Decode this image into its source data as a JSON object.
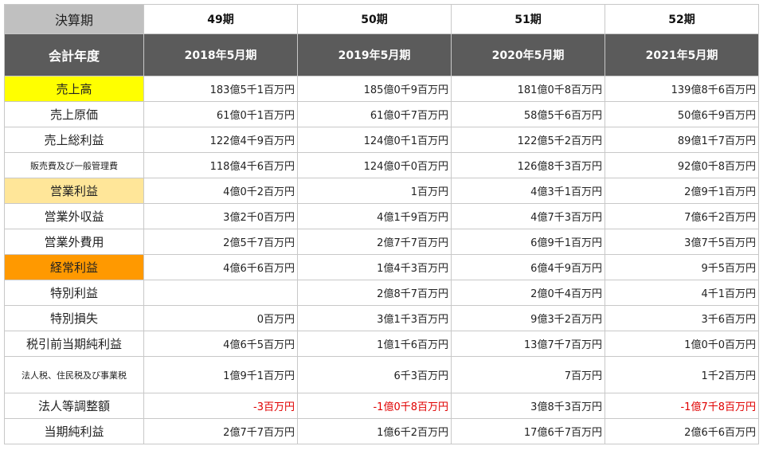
{
  "header": {
    "period_label": "決算期",
    "periods": [
      "49期",
      "50期",
      "51期",
      "52期"
    ],
    "fiscal_label": "会計年度",
    "years": [
      "2018年5月期",
      "2019年5月期",
      "2020年5月期",
      "2021年5月期"
    ]
  },
  "colors": {
    "highlight_yellow": "#ffff00",
    "highlight_peach": "#ffe699",
    "highlight_orange": "#ff9900",
    "negative_red": "#e00000",
    "header_gray": "#c0c0c0",
    "header_dark": "#5b5b5b"
  },
  "rows": [
    {
      "label": "売上高",
      "values": [
        "183億5千1百万円",
        "185億0千9百万円",
        "181億0千8百万円",
        "139億8千6百万円"
      ]
    },
    {
      "label": "売上原価",
      "values": [
        "61億0千1百万円",
        "61億0千7百万円",
        "58億5千6百万円",
        "50億6千9百万円"
      ]
    },
    {
      "label": "売上総利益",
      "values": [
        "122億4千9百万円",
        "124億0千1百万円",
        "122億5千2百万円",
        "89億1千7百万円"
      ]
    },
    {
      "label": "販売費及び一般管理費",
      "values": [
        "118億4千6百万円",
        "124億0千0百万円",
        "126億8千3百万円",
        "92億0千8百万円"
      ]
    },
    {
      "label": "営業利益",
      "values": [
        "4億0千2百万円",
        "1百万円",
        "4億3千1百万円",
        "2億9千1百万円"
      ]
    },
    {
      "label": "営業外収益",
      "values": [
        "3億2千0百万円",
        "4億1千9百万円",
        "4億7千3百万円",
        "7億6千2百万円"
      ]
    },
    {
      "label": "営業外費用",
      "values": [
        "2億5千7百万円",
        "2億7千7百万円",
        "6億9千1百万円",
        "3億7千5百万円"
      ]
    },
    {
      "label": "経常利益",
      "values": [
        "4億6千6百万円",
        "1億4千3百万円",
        "6億4千9百万円",
        "9千5百万円"
      ]
    },
    {
      "label": "特別利益",
      "values": [
        "",
        "2億8千7百万円",
        "2億0千4百万円",
        "4千1百万円"
      ]
    },
    {
      "label": "特別損失",
      "values": [
        "0百万円",
        "3億1千3百万円",
        "9億3千2百万円",
        "3千6百万円"
      ]
    },
    {
      "label": "税引前当期純利益",
      "values": [
        "4億6千5百万円",
        "1億1千6百万円",
        "13億7千7百万円",
        "1億0千0百万円"
      ]
    },
    {
      "label": "法人税、住民税及び事業税",
      "values": [
        "1億9千1百万円",
        "6千3百万円",
        "7百万円",
        "1千2百万円"
      ]
    },
    {
      "label": "法人等調整額",
      "values": [
        "-3百万円",
        "-1億0千8百万円",
        "3億8千3百万円",
        "-1億7千8百万円"
      ]
    },
    {
      "label": "当期純利益",
      "values": [
        "2億7千7百万円",
        "1億6千2百万円",
        "17億6千7百万円",
        "2億6千6百万円"
      ]
    }
  ]
}
